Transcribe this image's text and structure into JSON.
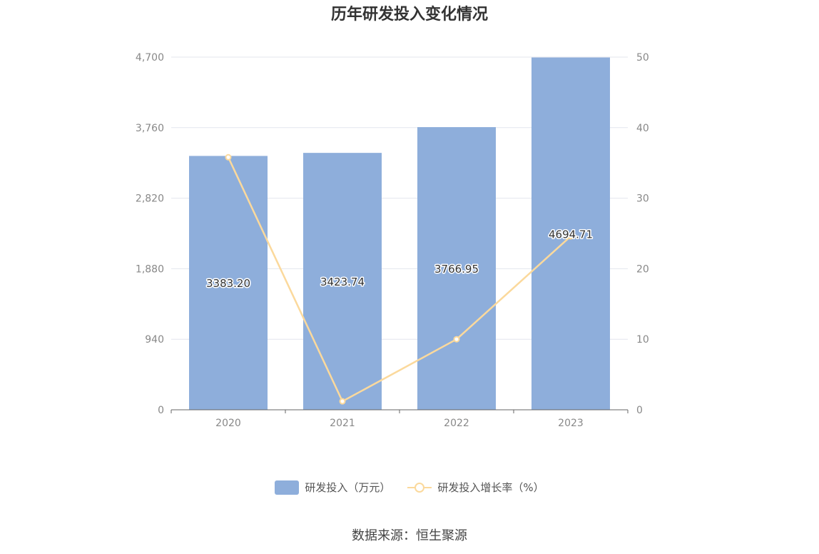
{
  "title": "历年研发投入变化情况",
  "source": "数据来源：恒生聚源",
  "colors": {
    "bar": "#8eaedb",
    "line": "#fbd99c",
    "grid": "#e3e6ee",
    "axis": "#666666",
    "tick_text": "#888888"
  },
  "chart_data": {
    "type": "bar",
    "categories": [
      "2020",
      "2021",
      "2022",
      "2023"
    ],
    "series": [
      {
        "name": "研发投入（万元）",
        "type": "bar",
        "axis": "left",
        "values": [
          3383.2,
          3423.74,
          3766.95,
          4694.71
        ],
        "labels": [
          "3383.20",
          "3423.74",
          "3766.95",
          "4694.71"
        ]
      },
      {
        "name": "研发投入增长率（%）",
        "type": "line",
        "axis": "right",
        "values": [
          35.8,
          1.2,
          10.0,
          24.6
        ]
      }
    ],
    "y_left": {
      "ylim": [
        0,
        4700
      ],
      "ticks": [
        0,
        940,
        1880,
        2820,
        3760,
        4700
      ],
      "tick_labels": [
        "0",
        "940",
        "1,880",
        "2,820",
        "3,760",
        "4,700"
      ]
    },
    "y_right": {
      "ylim": [
        0,
        50
      ],
      "ticks": [
        0,
        10,
        20,
        30,
        40,
        50
      ],
      "tick_labels": [
        "0",
        "10",
        "20",
        "30",
        "40",
        "50"
      ]
    },
    "grid": true,
    "legend_position": "bottom"
  }
}
